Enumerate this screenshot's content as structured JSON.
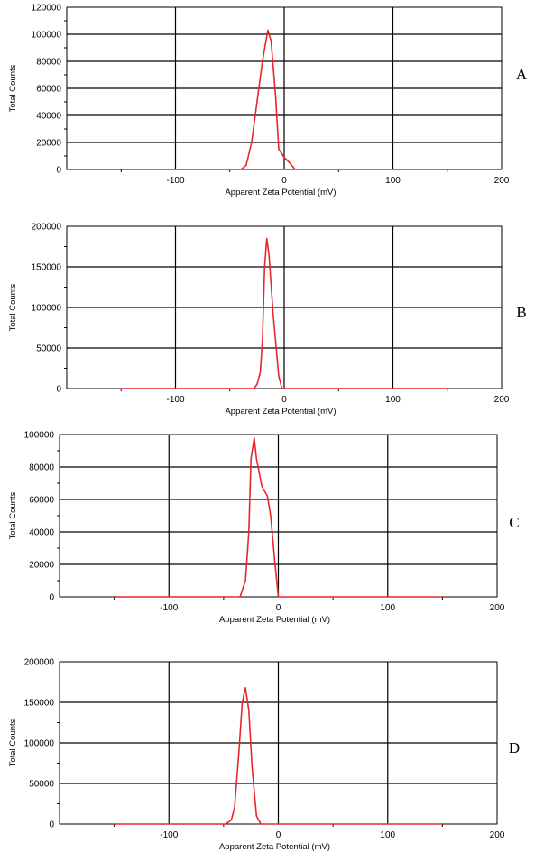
{
  "chart_data": [
    {
      "type": "line",
      "panel_label": "A",
      "xlabel": "Apparent Zeta Potential (mV)",
      "ylabel": "Total Counts",
      "xlim": [
        -200,
        200
      ],
      "ylim": [
        0,
        120000
      ],
      "x_ticks": [
        "-100",
        "0",
        "100",
        "200"
      ],
      "y_ticks": [
        "0",
        "20000",
        "40000",
        "60000",
        "80000",
        "100000",
        "120000"
      ],
      "grid": true,
      "line_color": "#e8272b",
      "series": [
        {
          "x": [
            -150,
            -40,
            -35,
            -30,
            -25,
            -20,
            -15,
            -12,
            -8,
            -5,
            0,
            5,
            10,
            20,
            150
          ],
          "y": [
            0,
            0,
            3000,
            20000,
            50000,
            80000,
            103000,
            95000,
            55000,
            15000,
            9000,
            5000,
            0,
            0,
            0
          ]
        }
      ]
    },
    {
      "type": "line",
      "panel_label": "B",
      "xlabel": "Apparent Zeta Potential (mV)",
      "ylabel": "Total Counts",
      "xlim": [
        -200,
        200
      ],
      "ylim": [
        0,
        200000
      ],
      "x_ticks": [
        "-100",
        "0",
        "100",
        "200"
      ],
      "y_ticks": [
        "0",
        "50000",
        "100000",
        "150000",
        "200000"
      ],
      "grid": true,
      "line_color": "#e8272b",
      "series": [
        {
          "x": [
            -150,
            -28,
            -25,
            -22,
            -20,
            -18,
            -16,
            -14,
            -10,
            -5,
            -2,
            150
          ],
          "y": [
            0,
            0,
            5000,
            20000,
            60000,
            150000,
            185000,
            165000,
            90000,
            15000,
            0,
            0
          ]
        }
      ]
    },
    {
      "type": "line",
      "panel_label": "C",
      "xlabel": "Apparent Zeta Potential (mV)",
      "ylabel": "Total Counts",
      "xlim": [
        -200,
        200
      ],
      "ylim": [
        0,
        100000
      ],
      "x_ticks": [
        "-100",
        "0",
        "100",
        "200"
      ],
      "y_ticks": [
        "0",
        "20000",
        "40000",
        "60000",
        "80000",
        "100000"
      ],
      "grid": true,
      "line_color": "#e8272b",
      "series": [
        {
          "x": [
            -150,
            -35,
            -30,
            -27,
            -25,
            -22,
            -20,
            -15,
            -10,
            -7,
            -3,
            0,
            150
          ],
          "y": [
            0,
            0,
            10000,
            40000,
            85000,
            98000,
            85000,
            68000,
            62000,
            50000,
            20000,
            0,
            0
          ]
        }
      ]
    },
    {
      "type": "line",
      "panel_label": "D",
      "xlabel": "Apparent Zeta Potential (mV)",
      "ylabel": "Total Counts",
      "xlim": [
        -200,
        200
      ],
      "ylim": [
        0,
        200000
      ],
      "x_ticks": [
        "-100",
        "0",
        "100",
        "200"
      ],
      "y_ticks": [
        "0",
        "50000",
        "100000",
        "150000",
        "200000"
      ],
      "grid": true,
      "line_color": "#e8272b",
      "series": [
        {
          "x": [
            -150,
            -48,
            -43,
            -40,
            -36,
            -33,
            -30,
            -27,
            -24,
            -20,
            -16,
            150
          ],
          "y": [
            0,
            0,
            5000,
            20000,
            90000,
            150000,
            168000,
            140000,
            70000,
            10000,
            0,
            0
          ]
        }
      ]
    }
  ]
}
